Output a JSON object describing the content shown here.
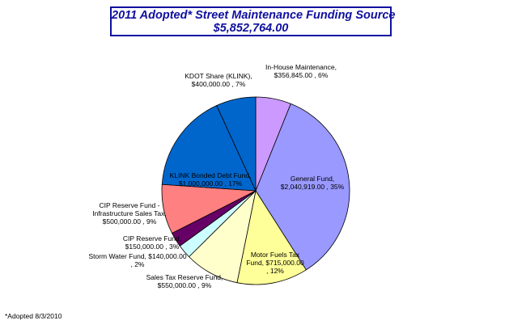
{
  "title": "2011 Adopted* Street Maintenance Funding Source",
  "subtitle": "$5,852,764.00",
  "footnote": "*Adopted 8/3/2010",
  "chart_data": {
    "type": "pie",
    "slices": [
      {
        "label_lines": [
          "In-House Maintenance,",
          "$356,845.00 , 6%"
        ],
        "value": 356845.0,
        "percent": 6,
        "color": "#cc99ff"
      },
      {
        "label_lines": [
          "General Fund,",
          "$2,040,919.00 , 35%"
        ],
        "value": 2040919.0,
        "percent": 35,
        "color": "#9999ff"
      },
      {
        "label_lines": [
          "Motor Fuels Tax",
          "Fund,  $715,000.00",
          ", 12%"
        ],
        "value": 715000.0,
        "percent": 12,
        "color": "#ffff99"
      },
      {
        "label_lines": [
          "Sales Tax Reserve Fund,",
          "$550,000.00 , 9%"
        ],
        "value": 550000.0,
        "percent": 9,
        "color": "#ffffcc"
      },
      {
        "label_lines": [
          "Storm Water Fund,  $140,000.00",
          ", 2%"
        ],
        "value": 140000.0,
        "percent": 2,
        "color": "#ccffff"
      },
      {
        "label_lines": [
          "CIP Reserve Fund,",
          "$150,000.00 , 3%"
        ],
        "value": 150000.0,
        "percent": 3,
        "color": "#660066"
      },
      {
        "label_lines": [
          "CIP Reserve Fund -",
          "Infrastructure Sales Tax,",
          "$500,000.00 , 9%"
        ],
        "value": 500000.0,
        "percent": 9,
        "color": "#ff8080"
      },
      {
        "label_lines": [
          "KLINK Bonded Debt Fund,",
          "$1,000,000.00 , 17%"
        ],
        "value": 1000000.0,
        "percent": 17,
        "color": "#0066cc"
      },
      {
        "label_lines": [
          "KDOT Share (KLINK),",
          "$400,000.00 , 7%"
        ],
        "value": 400000.0,
        "percent": 7,
        "color": "#0066cc"
      }
    ]
  }
}
